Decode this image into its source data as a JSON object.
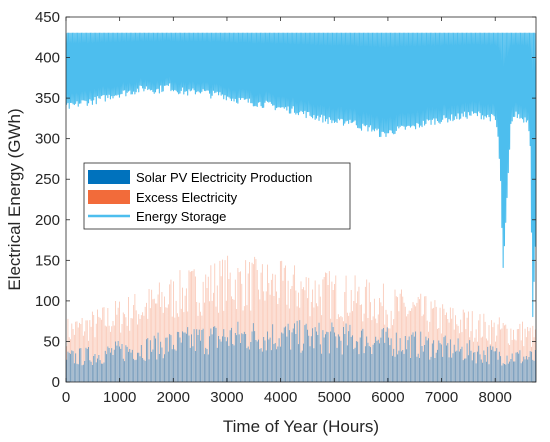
{
  "chart_data": {
    "type": "area",
    "title": "",
    "xlabel": "Time of Year (Hours)",
    "ylabel": "Electrical Energy (GWh)",
    "xlim": [
      0,
      8760
    ],
    "ylim": [
      0,
      450
    ],
    "xticks": [
      0,
      1000,
      2000,
      3000,
      4000,
      5000,
      6000,
      7000,
      8000
    ],
    "yticks": [
      0,
      50,
      100,
      150,
      200,
      250,
      300,
      350,
      400,
      450
    ],
    "grid": false,
    "legend_position": "center-left",
    "series": [
      {
        "name": "Solar PV Electricity Production",
        "style": "filled-area",
        "color": "#0072BD",
        "daily_peak_envelope": {
          "x": [
            0,
            500,
            1000,
            1500,
            2000,
            2500,
            3000,
            3500,
            4000,
            4500,
            5000,
            5500,
            6000,
            6500,
            7000,
            7500,
            8000,
            8500,
            8760
          ],
          "y": [
            40,
            45,
            52,
            58,
            65,
            72,
            76,
            78,
            78,
            76,
            74,
            72,
            68,
            64,
            58,
            52,
            46,
            42,
            40
          ]
        }
      },
      {
        "name": "Excess Electricity",
        "style": "filled-area",
        "color": "#F26B3A",
        "daily_peak_envelope": {
          "x": [
            0,
            500,
            1000,
            1500,
            2000,
            2500,
            3000,
            3500,
            4000,
            4500,
            5000,
            5500,
            6000,
            6500,
            7000,
            7500,
            8000,
            8500,
            8760
          ],
          "y": [
            80,
            90,
            105,
            118,
            135,
            148,
            158,
            155,
            150,
            145,
            138,
            130,
            120,
            112,
            100,
            92,
            82,
            78,
            70
          ]
        }
      },
      {
        "name": "Energy Storage",
        "style": "line",
        "color": "#4DBEEE",
        "max": 430,
        "lower_envelope": {
          "x": [
            0,
            100,
            300,
            500,
            700,
            900,
            1100,
            1300,
            1500,
            1700,
            1900,
            2100,
            2300,
            2500,
            2700,
            2900,
            3100,
            3300,
            3500,
            3700,
            3900,
            4100,
            4300,
            4500,
            4700,
            4900,
            5100,
            5300,
            5500,
            5700,
            5900,
            6100,
            6300,
            6500,
            6700,
            6900,
            7100,
            7300,
            7500,
            7700,
            7900,
            8000,
            8050,
            8100,
            8150,
            8200,
            8300,
            8400,
            8500,
            8600,
            8650,
            8700,
            8760
          ],
          "y": [
            335,
            335,
            340,
            342,
            345,
            350,
            352,
            355,
            358,
            355,
            360,
            355,
            352,
            355,
            350,
            350,
            345,
            342,
            340,
            338,
            335,
            332,
            330,
            325,
            322,
            318,
            315,
            318,
            310,
            308,
            300,
            305,
            308,
            310,
            315,
            318,
            320,
            322,
            325,
            325,
            322,
            320,
            300,
            240,
            130,
            195,
            320,
            325,
            320,
            320,
            300,
            75,
            180
          ]
        }
      }
    ]
  }
}
